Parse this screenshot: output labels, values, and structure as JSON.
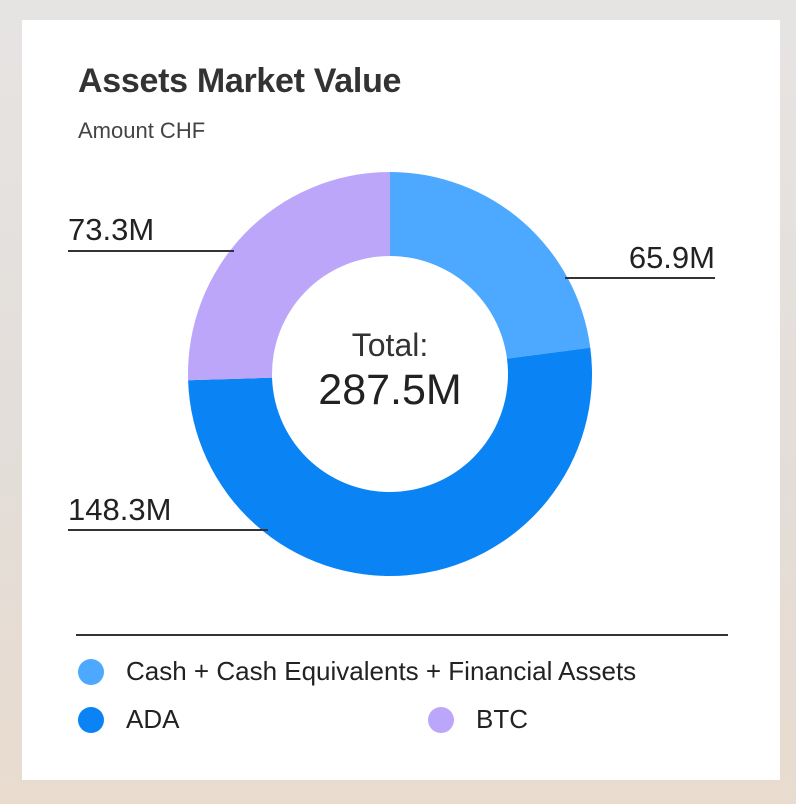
{
  "card": {
    "title": "Assets Market Value",
    "subtitle": "Amount CHF"
  },
  "chart_data": {
    "type": "pie",
    "variant": "donut",
    "title": "Assets Market Value",
    "subtitle": "Amount CHF",
    "center_label": "Total:",
    "center_value": "287.5M",
    "total": 287.5,
    "unit": "M",
    "slices": [
      {
        "name": "Cash + Cash Equivalents + Financial Assets",
        "value": 65.9,
        "label": "65.9M",
        "color": "#4da8ff"
      },
      {
        "name": "ADA",
        "value": 148.3,
        "label": "148.3M",
        "color": "#0a84f5"
      },
      {
        "name": "BTC",
        "value": 73.3,
        "label": "73.3M",
        "color": "#bba6fa"
      }
    ],
    "legend_position": "bottom"
  }
}
